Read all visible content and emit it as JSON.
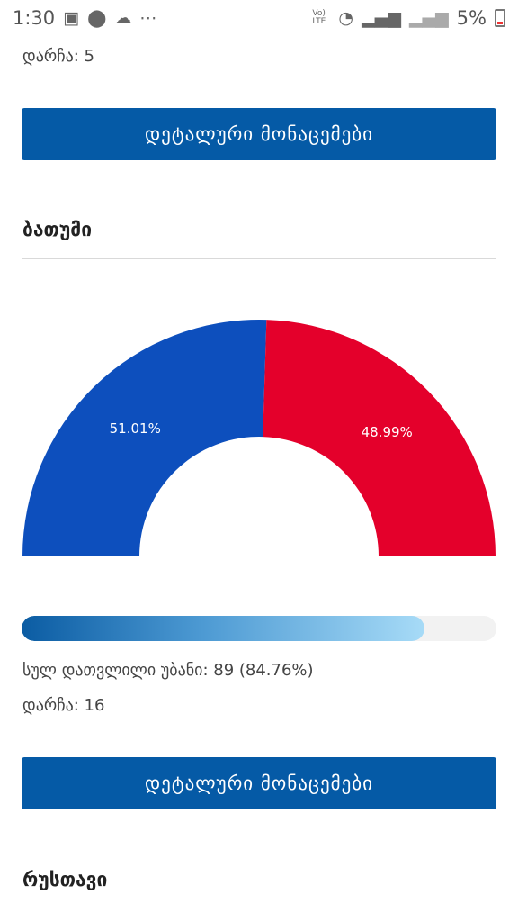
{
  "status_bar": {
    "time": "1:30",
    "battery": "5%",
    "left_icons": [
      "image-icon",
      "location-icon",
      "cloud-icon",
      "more-icon"
    ],
    "right_icons": [
      "volte-icon",
      "wifi-icon",
      "signal-icon",
      "signal-icon",
      "battery-icon"
    ],
    "volte_label": "Vo) LTE"
  },
  "top_section": {
    "remaining": "დარჩა: 5",
    "details_button": "დეტალური მონაცემები"
  },
  "batumi": {
    "title": "ბათუმი",
    "chart_data": {
      "type": "pie",
      "shape": "half-donut",
      "slices": [
        {
          "label": "51.01%",
          "value": 51.01,
          "color": "#0d4fbd"
        },
        {
          "label": "48.99%",
          "value": 48.99,
          "color": "#e4002b"
        }
      ]
    },
    "progress_fraction": 0.8476,
    "counted_text": "სულ დათვლილი უბანი: 89 (84.76%)",
    "remaining": "დარჩა: 16",
    "details_button": "დეტალური მონაცემები"
  },
  "rustavi": {
    "title": "რუსთავი"
  }
}
